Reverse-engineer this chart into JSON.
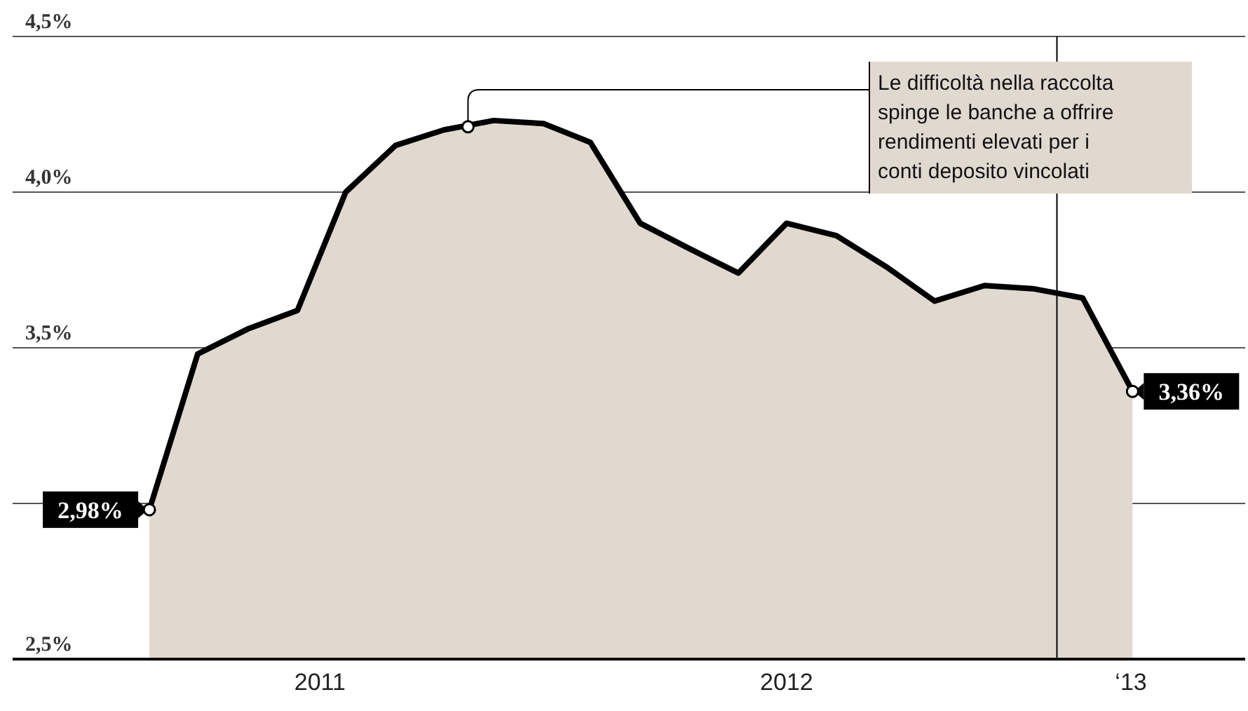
{
  "chart_data": {
    "type": "area",
    "x": [
      "2011-06",
      "2011-07",
      "2011-08",
      "2011-09",
      "2011-10",
      "2011-11",
      "2011-12",
      "2012-01",
      "2012-02",
      "2012-03",
      "2012-04",
      "2012-05",
      "2012-06",
      "2012-07",
      "2012-08",
      "2012-09",
      "2012-10",
      "2012-11",
      "2012-12",
      "2013-01",
      "2013-02"
    ],
    "series": [
      {
        "color": "#000000",
        "values": [
          2.98,
          3.48,
          3.56,
          3.62,
          4.0,
          4.15,
          4.2,
          4.23,
          4.22,
          4.16,
          3.9,
          3.82,
          3.74,
          3.9,
          3.86,
          3.76,
          3.65,
          3.7,
          3.69,
          3.66,
          3.36
        ],
        "value_labels": [
          "2,98%",
          null,
          null,
          null,
          null,
          null,
          null,
          null,
          null,
          null,
          null,
          null,
          null,
          null,
          null,
          null,
          null,
          null,
          null,
          null,
          "3,36%"
        ]
      }
    ],
    "xlim": [
      "2011-03-08",
      "2013-04-12"
    ],
    "xticks": [
      {
        "value": "2011-09-15",
        "label": "2011"
      },
      {
        "value": "2012-07-01",
        "label": "2012"
      },
      {
        "value": "2013-01-31",
        "label": "‘13"
      }
    ],
    "ylim": [
      2.5,
      4.5
    ],
    "yticks": [
      {
        "value": 2.5,
        "label": "2,5%"
      },
      {
        "value": 3.0,
        "label": null
      },
      {
        "value": 3.5,
        "label": "3,5%"
      },
      {
        "value": 4.0,
        "label": "4,0%"
      },
      {
        "value": 4.5,
        "label": "4,5%"
      }
    ],
    "grid": "y",
    "ref_lines": [
      {
        "axis": "x",
        "value": "2012-12-16",
        "color": "#000000"
      }
    ],
    "annotations": [
      {
        "text": "Le difficoltà nella raccolta spinge le banche a offrire rendimenti elevati per i conti deposito vincolati",
        "x": "2011-12-16",
        "y": 4.21
      }
    ]
  }
}
